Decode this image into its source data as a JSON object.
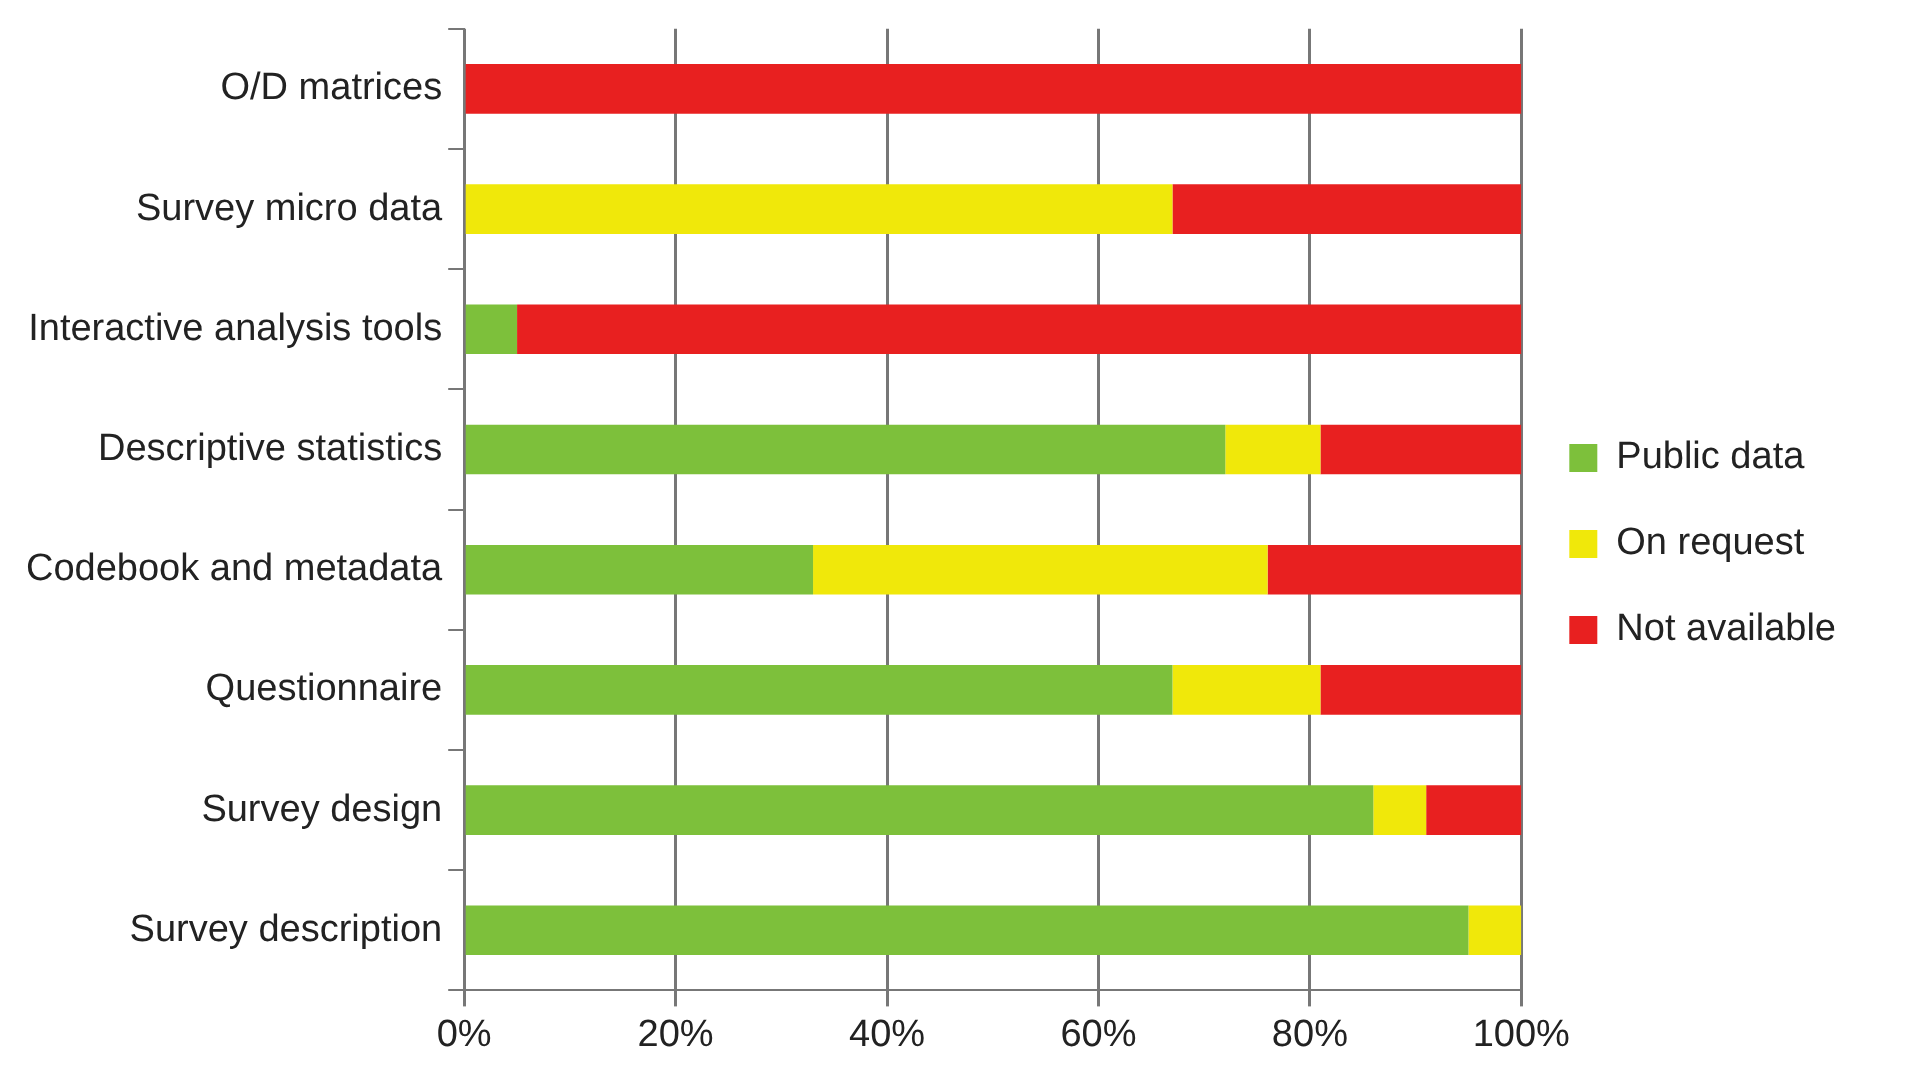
{
  "chart_data": {
    "type": "bar",
    "orientation": "horizontal",
    "stacked": true,
    "categories": [
      "O/D matrices",
      "Survey micro data",
      "Interactive analysis tools",
      "Descriptive statistics",
      "Codebook and metadata",
      "Questionnaire",
      "Survey design",
      "Survey description"
    ],
    "series": [
      {
        "name": "Public data",
        "color": "#7dc03b",
        "values": [
          0,
          0,
          5,
          72,
          33,
          67,
          86,
          95
        ]
      },
      {
        "name": "On request",
        "color": "#f0e80a",
        "values": [
          0,
          67,
          0,
          9,
          43,
          14,
          5,
          5
        ]
      },
      {
        "name": "Not available",
        "color": "#e82020",
        "values": [
          100,
          33,
          95,
          19,
          24,
          19,
          9,
          0
        ]
      }
    ],
    "xlim": [
      0,
      100
    ],
    "xticks": [
      {
        "value": 0,
        "label": "0%"
      },
      {
        "value": 20,
        "label": "20%"
      },
      {
        "value": 40,
        "label": "40%"
      },
      {
        "value": 60,
        "label": "60%"
      },
      {
        "value": 80,
        "label": "80%"
      },
      {
        "value": 100,
        "label": "100%"
      }
    ],
    "grid": "x",
    "legend": "right"
  }
}
